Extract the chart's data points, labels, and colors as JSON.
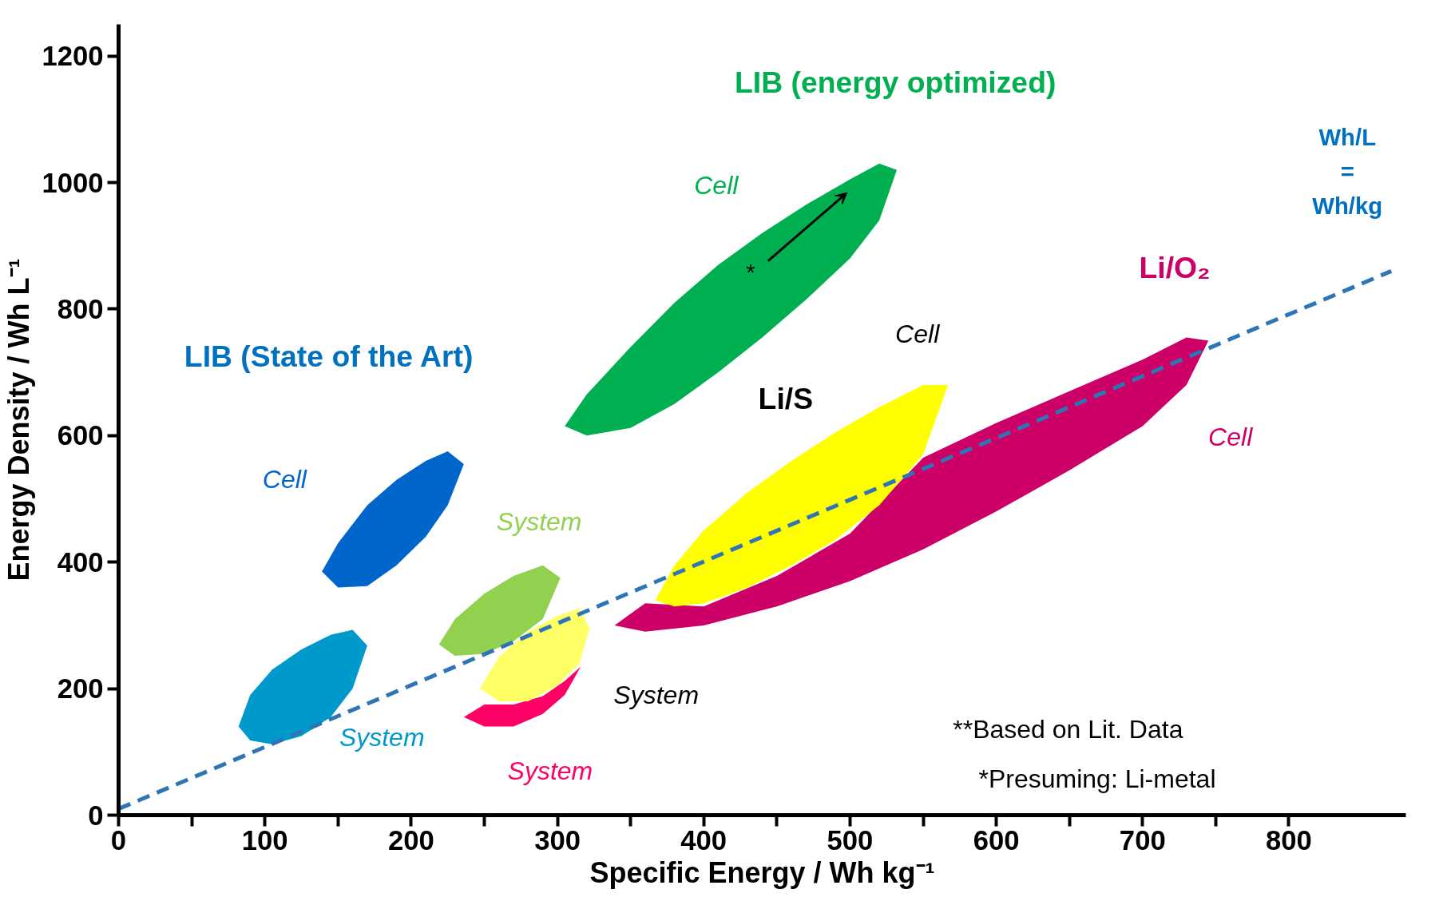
{
  "chart_data": {
    "type": "area",
    "xlabel": "Specific Energy / Wh kg⁻¹",
    "ylabel": "Energy Density / Wh L⁻¹",
    "xlim": [
      0,
      880
    ],
    "ylim": [
      0,
      1250
    ],
    "xticks": [
      0,
      {
        "value": 50,
        "label": null
      },
      100,
      {
        "value": 150,
        "label": null
      },
      200,
      {
        "value": 250,
        "label": null
      },
      300,
      {
        "value": 350,
        "label": null
      },
      400,
      {
        "value": 450,
        "label": null
      },
      500,
      {
        "value": 550,
        "label": null
      },
      600,
      {
        "value": 650,
        "label": null
      },
      700,
      {
        "value": 750,
        "label": null
      },
      800
    ],
    "yticks": [
      0,
      200,
      400,
      600,
      800,
      1000,
      1200
    ],
    "grid": false,
    "series": [
      {
        "name": "System",
        "color": "#0099cc",
        "x": [
          82,
          90,
          105,
          125,
          145,
          160,
          170,
          160,
          145,
          125,
          105,
          90
        ],
        "values": [
          140,
          190,
          230,
          262,
          285,
          293,
          268,
          200,
          155,
          125,
          112,
          118
        ]
      },
      {
        "name": "Cell",
        "color": "#0066cc",
        "x": [
          139,
          150,
          170,
          190,
          210,
          225,
          236,
          225,
          210,
          190,
          170,
          150
        ],
        "values": [
          385,
          430,
          490,
          530,
          560,
          575,
          555,
          490,
          440,
          395,
          362,
          360
        ]
      },
      {
        "name": "System",
        "color": "#92d050",
        "x": [
          219,
          230,
          250,
          270,
          290,
          302,
          290,
          270,
          250,
          230
        ],
        "values": [
          270,
          310,
          350,
          378,
          395,
          375,
          310,
          275,
          255,
          252
        ]
      },
      {
        "name": "Cell",
        "color": "#00b050",
        "x": [
          305,
          320,
          350,
          380,
          410,
          440,
          470,
          500,
          520,
          532,
          520,
          500,
          470,
          440,
          410,
          380,
          350,
          320
        ],
        "values": [
          615,
          665,
          740,
          810,
          870,
          920,
          965,
          1005,
          1030,
          1020,
          940,
          880,
          815,
          755,
          700,
          650,
          612,
          600
        ]
      },
      {
        "name": "System",
        "color": "#ff0066",
        "x": [
          236,
          250,
          270,
          290,
          305,
          316,
          305,
          290,
          270,
          250
        ],
        "values": [
          155,
          175,
          175,
          188,
          212,
          235,
          190,
          160,
          140,
          140
        ]
      },
      {
        "name": "System",
        "color": "#ffff66",
        "x": [
          247,
          260,
          280,
          300,
          315,
          322,
          315,
          300,
          280,
          260
        ],
        "values": [
          200,
          250,
          290,
          315,
          327,
          295,
          240,
          205,
          180,
          180
        ]
      },
      {
        "name": "Cell",
        "color": "#cc0066",
        "x": [
          339,
          360,
          400,
          450,
          500,
          550,
          600,
          650,
          700,
          730,
          745,
          730,
          700,
          650,
          600,
          550,
          500,
          450,
          400,
          360
        ],
        "values": [
          300,
          335,
          330,
          378,
          445,
          565,
          620,
          670,
          720,
          755,
          750,
          680,
          615,
          545,
          480,
          420,
          370,
          330,
          300,
          290
        ]
      },
      {
        "name": "Cell",
        "color": "#ffff00",
        "x": [
          367,
          380,
          400,
          430,
          460,
          490,
          520,
          550,
          567,
          550,
          520,
          490,
          460,
          430,
          400,
          380
        ],
        "values": [
          340,
          395,
          450,
          510,
          560,
          605,
          645,
          680,
          680,
          570,
          490,
          435,
          395,
          360,
          335,
          330
        ]
      },
      {
        "type": "line",
        "color": "#2e75b6",
        "line_style": "dashed",
        "x": [
          0,
          870
        ],
        "values": [
          10,
          860
        ]
      }
    ],
    "annotations": [
      "LIB (energy optimized)",
      "Wh/L\n=\nWh/kg",
      "Li/O₂",
      "LIB (State of the Art)",
      "Li/S",
      "*",
      "**Based on Lit. Data",
      "*Presuming: Li-metal"
    ]
  }
}
